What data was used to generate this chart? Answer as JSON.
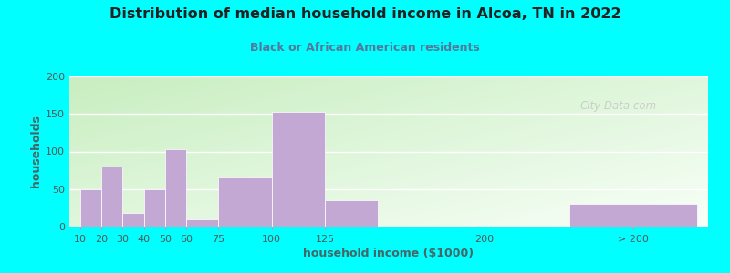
{
  "title": "Distribution of median household income in Alcoa, TN in 2022",
  "subtitle": "Black or African American residents",
  "xlabel": "household income ($1000)",
  "ylabel": "households",
  "background_outer": "#00FFFF",
  "bar_color": "#C4A8D4",
  "title_color": "#222222",
  "subtitle_color": "#557799",
  "axis_label_color": "#446666",
  "tick_label_color": "#555555",
  "bar_lefts": [
    10,
    20,
    30,
    40,
    50,
    60,
    75,
    100,
    125,
    240
  ],
  "bar_widths": [
    10,
    10,
    10,
    10,
    10,
    15,
    25,
    25,
    25,
    60
  ],
  "bar_heights": [
    50,
    80,
    18,
    50,
    103,
    10,
    65,
    153,
    35,
    30
  ],
  "tick_positions": [
    10,
    20,
    30,
    40,
    50,
    60,
    75,
    100,
    125,
    200,
    270
  ],
  "tick_labels": [
    "10",
    "20",
    "30",
    "40",
    "50",
    "60",
    "75",
    "100",
    "125",
    "200",
    "> 200"
  ],
  "xlim": [
    5,
    305
  ],
  "ylim": [
    0,
    200
  ],
  "yticks": [
    0,
    50,
    100,
    150,
    200
  ],
  "watermark": "City-Data.com",
  "grad_color_left": "#c8eec0",
  "grad_color_right": "#f8fff8"
}
